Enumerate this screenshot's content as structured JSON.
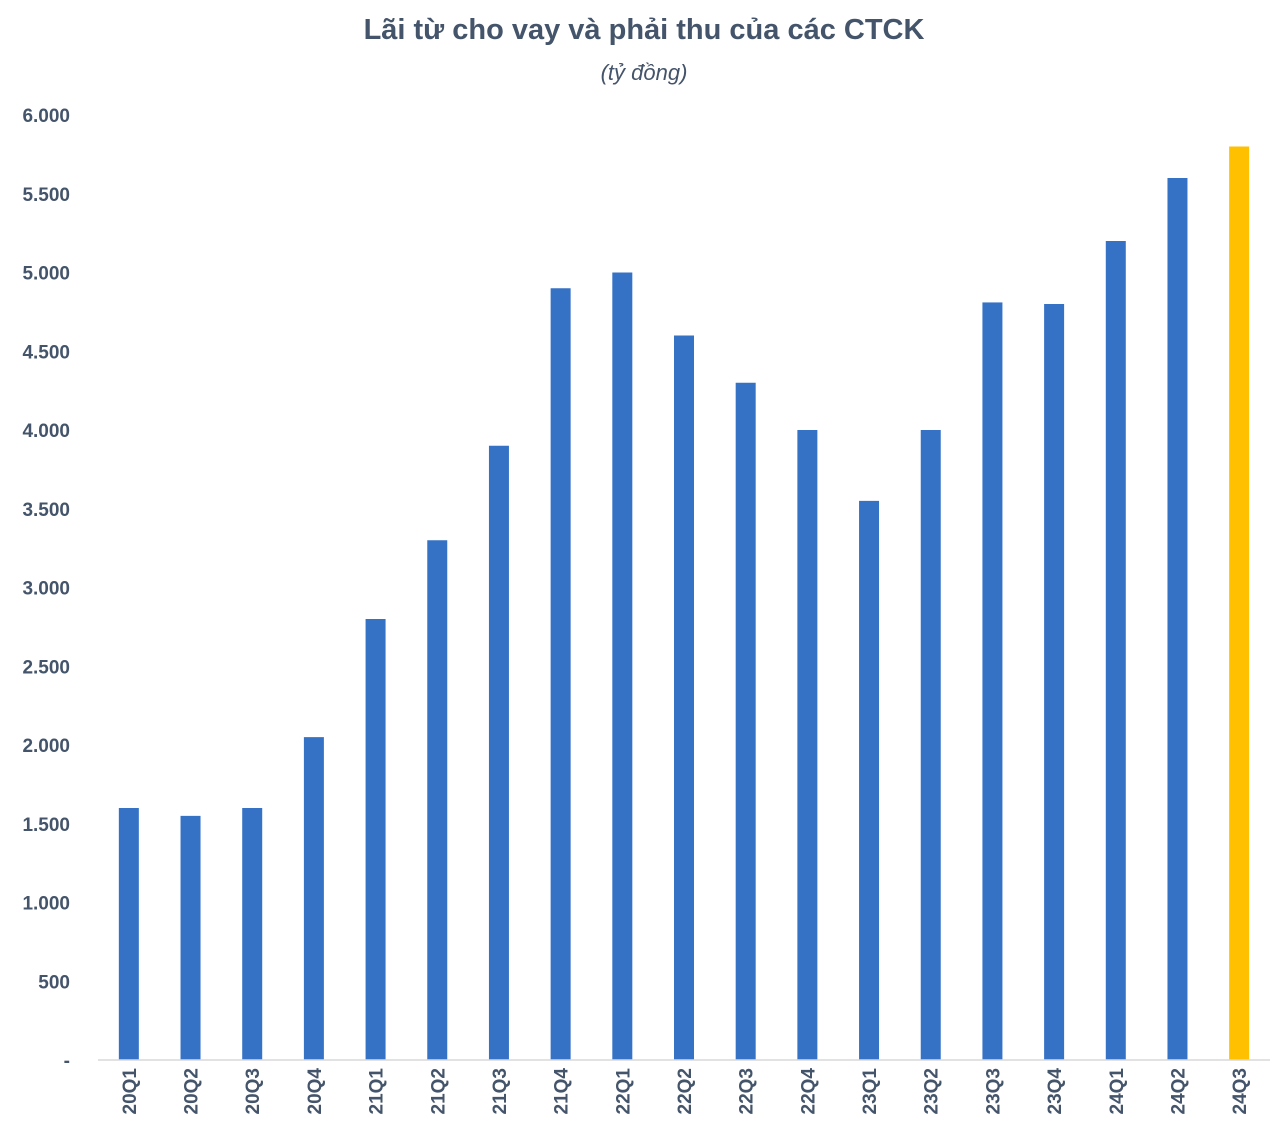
{
  "chart_data": {
    "type": "bar",
    "title": "Lãi từ cho vay và phải thu của các CTCK",
    "subtitle": "(tỷ đồng)",
    "xlabel": "",
    "ylabel": "",
    "categories": [
      "20Q1",
      "20Q2",
      "20Q3",
      "20Q4",
      "21Q1",
      "21Q2",
      "21Q3",
      "21Q4",
      "22Q1",
      "22Q2",
      "22Q3",
      "22Q4",
      "23Q1",
      "23Q2",
      "23Q3",
      "23Q4",
      "24Q1",
      "24Q2",
      "24Q3"
    ],
    "values": [
      1600,
      1550,
      1600,
      2050,
      2800,
      3300,
      3900,
      4900,
      5000,
      4600,
      4300,
      4000,
      3550,
      4000,
      4810,
      4800,
      5200,
      5600,
      5800
    ],
    "bar_colors": [
      "#3572c6",
      "#3572c6",
      "#3572c6",
      "#3572c6",
      "#3572c6",
      "#3572c6",
      "#3572c6",
      "#3572c6",
      "#3572c6",
      "#3572c6",
      "#3572c6",
      "#3572c6",
      "#3572c6",
      "#3572c6",
      "#3572c6",
      "#3572c6",
      "#3572c6",
      "#3572c6",
      "#ffc000"
    ],
    "ylim": [
      0,
      6000
    ],
    "y_ticks": [
      0,
      500,
      1000,
      1500,
      2000,
      2500,
      3000,
      3500,
      4000,
      4500,
      5000,
      5500,
      6000
    ],
    "y_tick_labels": [
      "-",
      "500",
      "1.000",
      "1.500",
      "2.000",
      "2.500",
      "3.000",
      "3.500",
      "4.000",
      "4.500",
      "5.000",
      "5.500",
      "6.000"
    ],
    "grid": false,
    "legend": "none",
    "x_label_rotation": "vertical"
  }
}
